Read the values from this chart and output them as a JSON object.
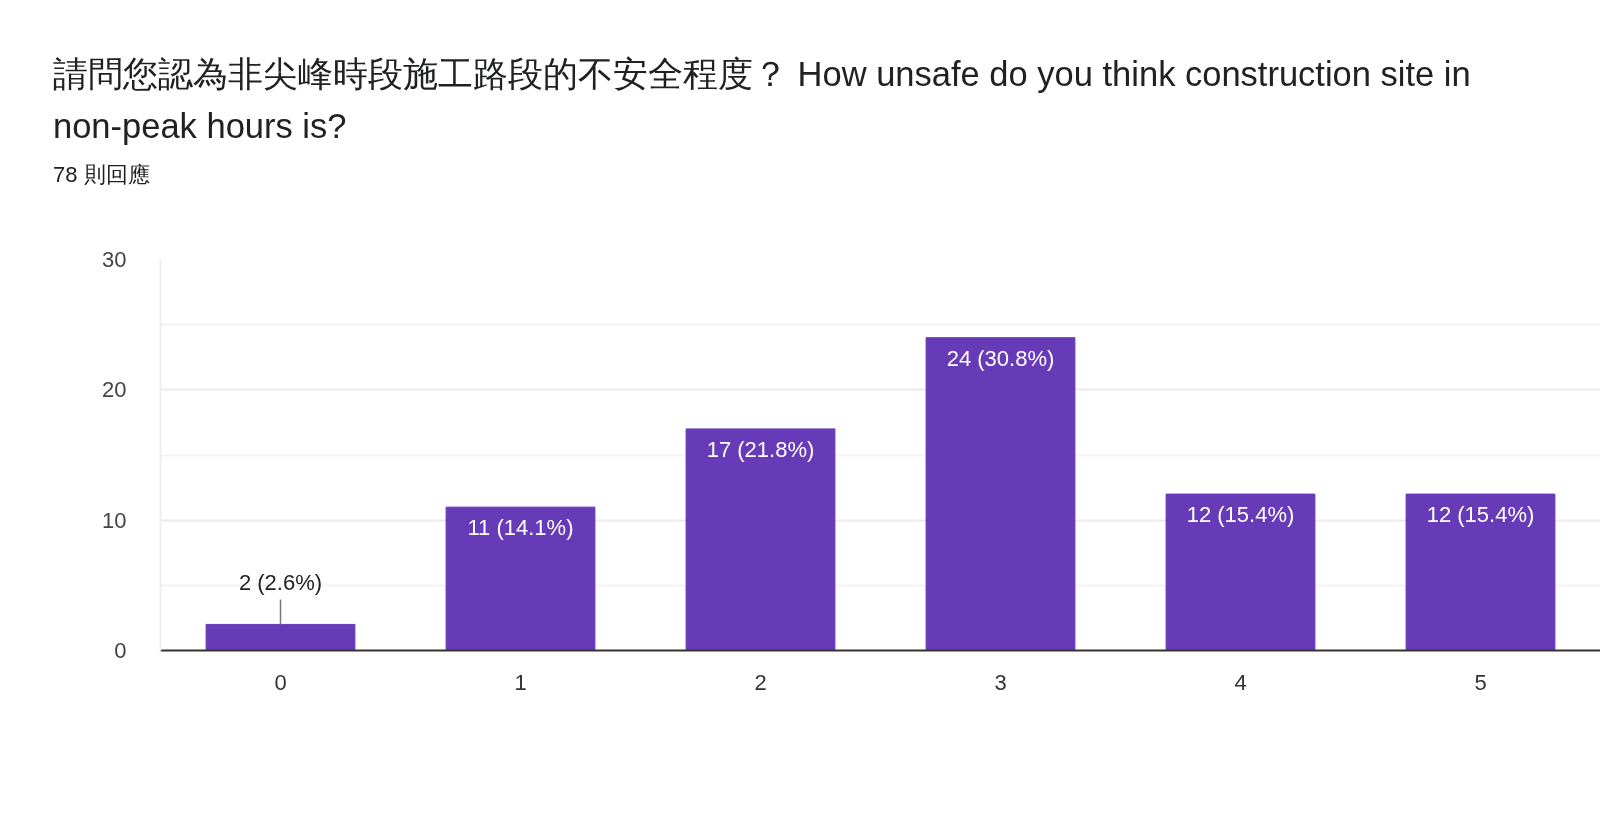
{
  "chart_data": {
    "type": "bar",
    "title": "請問您認為非尖峰時段施工路段的不安全程度？ How unsafe do you think construction site in non-peak hours is?",
    "subtitle": "78 則回應",
    "categories": [
      "0",
      "1",
      "2",
      "3",
      "4",
      "5"
    ],
    "values": [
      2,
      11,
      17,
      24,
      12,
      12
    ],
    "value_labels": [
      "2 (2.6%)",
      "11 (14.1%)",
      "17 (21.8%)",
      "24 (30.8%)",
      "12 (15.4%)",
      "12 (15.4%)"
    ],
    "color": "#673ab7",
    "ylim": [
      0,
      30
    ],
    "yticks": [
      0,
      {
        "value": 5,
        "label": null
      },
      10,
      {
        "value": 15,
        "label": null
      },
      20,
      {
        "value": 25,
        "label": null
      },
      30
    ],
    "grid": "y"
  }
}
